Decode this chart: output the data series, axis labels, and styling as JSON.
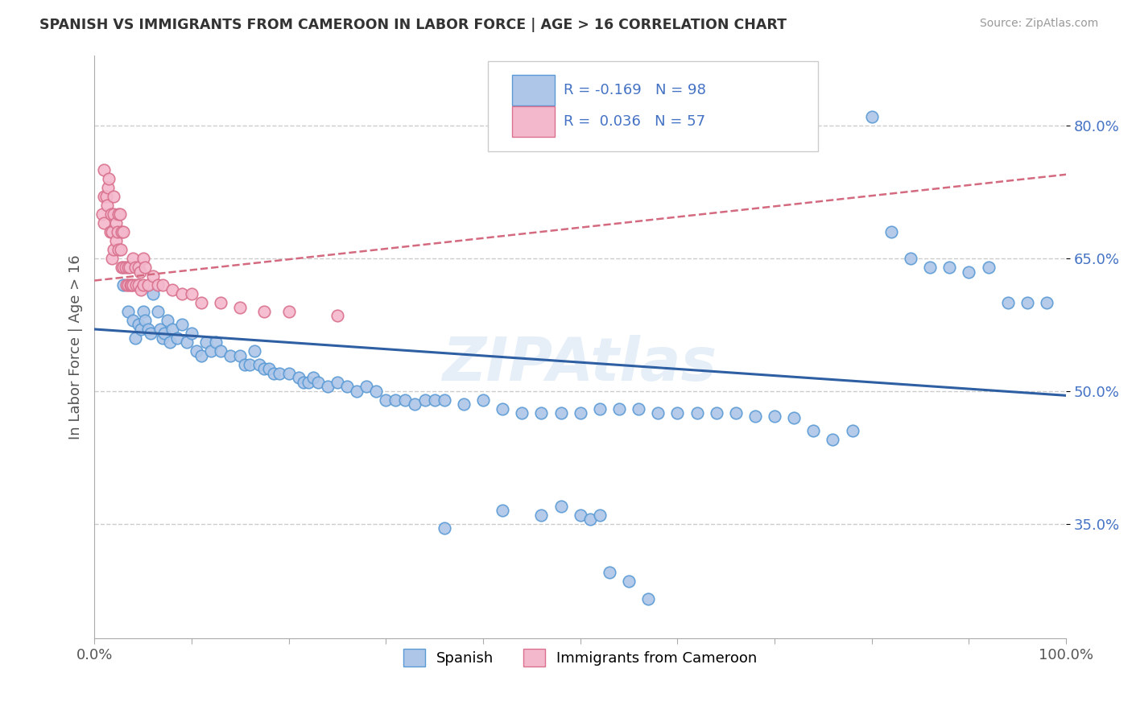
{
  "title": "SPANISH VS IMMIGRANTS FROM CAMEROON IN LABOR FORCE | AGE > 16 CORRELATION CHART",
  "source": "Source: ZipAtlas.com",
  "ylabel": "In Labor Force | Age > 16",
  "x_min": 0.0,
  "x_max": 1.0,
  "y_min": 0.22,
  "y_max": 0.88,
  "y_ticks": [
    0.35,
    0.5,
    0.65,
    0.8
  ],
  "y_tick_labels": [
    "35.0%",
    "50.0%",
    "65.0%",
    "80.0%"
  ],
  "blue_color": "#aec6e8",
  "blue_edge": "#5b9bd5",
  "pink_color": "#f4b8cc",
  "pink_edge": "#d9718e",
  "blue_line_color": "#2e5fa3",
  "pink_line_color": "#d46a80",
  "watermark": "ZIPAtlas",
  "legend_blue_label": "Spanish",
  "legend_pink_label": "Immigrants from Cameroon",
  "blue_x": [
    0.03,
    0.035,
    0.04,
    0.042,
    0.045,
    0.048,
    0.05,
    0.052,
    0.055,
    0.058,
    0.06,
    0.065,
    0.068,
    0.07,
    0.072,
    0.075,
    0.078,
    0.08,
    0.085,
    0.09,
    0.095,
    0.1,
    0.105,
    0.11,
    0.115,
    0.12,
    0.125,
    0.13,
    0.14,
    0.15,
    0.155,
    0.16,
    0.165,
    0.17,
    0.175,
    0.18,
    0.185,
    0.19,
    0.2,
    0.21,
    0.215,
    0.22,
    0.225,
    0.23,
    0.24,
    0.25,
    0.26,
    0.27,
    0.28,
    0.29,
    0.3,
    0.31,
    0.32,
    0.33,
    0.34,
    0.35,
    0.36,
    0.38,
    0.4,
    0.42,
    0.44,
    0.46,
    0.48,
    0.5,
    0.52,
    0.54,
    0.56,
    0.58,
    0.6,
    0.62,
    0.64,
    0.66,
    0.68,
    0.7,
    0.72,
    0.74,
    0.76,
    0.78,
    0.8,
    0.82,
    0.84,
    0.86,
    0.88,
    0.9,
    0.92,
    0.94,
    0.96,
    0.98,
    0.36,
    0.42,
    0.46,
    0.48,
    0.5,
    0.51,
    0.52,
    0.53,
    0.55,
    0.57
  ],
  "blue_y": [
    0.62,
    0.59,
    0.58,
    0.56,
    0.575,
    0.57,
    0.59,
    0.58,
    0.57,
    0.565,
    0.61,
    0.59,
    0.57,
    0.56,
    0.565,
    0.58,
    0.555,
    0.57,
    0.56,
    0.575,
    0.555,
    0.565,
    0.545,
    0.54,
    0.555,
    0.545,
    0.555,
    0.545,
    0.54,
    0.54,
    0.53,
    0.53,
    0.545,
    0.53,
    0.525,
    0.525,
    0.52,
    0.52,
    0.52,
    0.515,
    0.51,
    0.51,
    0.515,
    0.51,
    0.505,
    0.51,
    0.505,
    0.5,
    0.505,
    0.5,
    0.49,
    0.49,
    0.49,
    0.485,
    0.49,
    0.49,
    0.49,
    0.485,
    0.49,
    0.48,
    0.475,
    0.475,
    0.475,
    0.475,
    0.48,
    0.48,
    0.48,
    0.475,
    0.475,
    0.475,
    0.475,
    0.475,
    0.472,
    0.472,
    0.47,
    0.455,
    0.445,
    0.455,
    0.81,
    0.68,
    0.65,
    0.64,
    0.64,
    0.635,
    0.64,
    0.6,
    0.6,
    0.6,
    0.345,
    0.365,
    0.36,
    0.37,
    0.36,
    0.355,
    0.36,
    0.295,
    0.285,
    0.265
  ],
  "pink_x": [
    0.008,
    0.01,
    0.01,
    0.01,
    0.012,
    0.013,
    0.014,
    0.015,
    0.016,
    0.017,
    0.018,
    0.018,
    0.02,
    0.02,
    0.02,
    0.022,
    0.022,
    0.024,
    0.025,
    0.025,
    0.026,
    0.027,
    0.028,
    0.028,
    0.03,
    0.03,
    0.032,
    0.033,
    0.035,
    0.035,
    0.036,
    0.037,
    0.038,
    0.04,
    0.04,
    0.042,
    0.043,
    0.045,
    0.045,
    0.047,
    0.048,
    0.05,
    0.05,
    0.052,
    0.055,
    0.06,
    0.065,
    0.07,
    0.08,
    0.09,
    0.1,
    0.11,
    0.13,
    0.15,
    0.175,
    0.2,
    0.25
  ],
  "pink_y": [
    0.7,
    0.75,
    0.72,
    0.69,
    0.72,
    0.71,
    0.73,
    0.74,
    0.68,
    0.7,
    0.68,
    0.65,
    0.72,
    0.7,
    0.66,
    0.69,
    0.67,
    0.68,
    0.7,
    0.66,
    0.7,
    0.66,
    0.68,
    0.64,
    0.68,
    0.64,
    0.64,
    0.62,
    0.64,
    0.62,
    0.64,
    0.62,
    0.62,
    0.65,
    0.62,
    0.64,
    0.62,
    0.64,
    0.62,
    0.635,
    0.615,
    0.65,
    0.62,
    0.64,
    0.62,
    0.63,
    0.62,
    0.62,
    0.615,
    0.61,
    0.61,
    0.6,
    0.6,
    0.595,
    0.59,
    0.59,
    0.585
  ],
  "blue_trend_x": [
    0.0,
    1.0
  ],
  "blue_trend_y": [
    0.57,
    0.495
  ],
  "pink_trend_x": [
    0.0,
    1.0
  ],
  "pink_trend_y": [
    0.625,
    0.745
  ]
}
